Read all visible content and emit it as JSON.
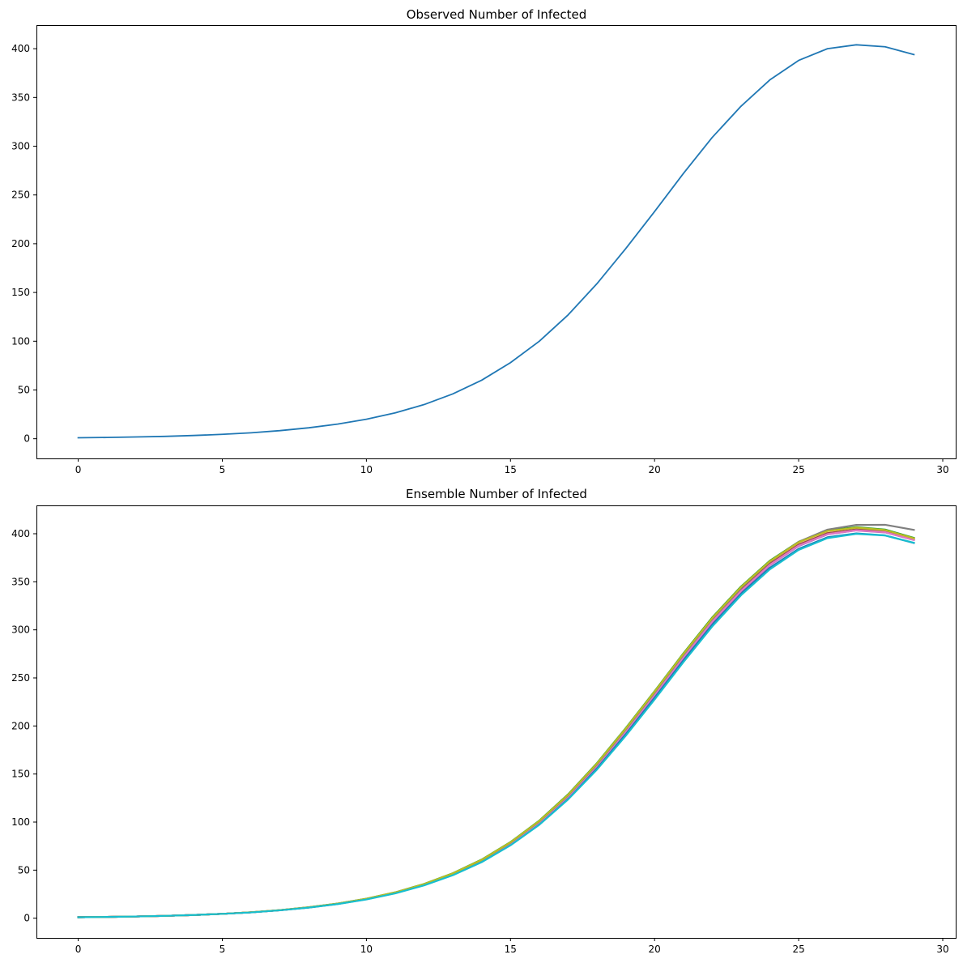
{
  "chart_data": [
    {
      "type": "line",
      "title": "Observed Number of Infected",
      "xlabel": "",
      "ylabel": "",
      "xlim": [
        -1.45,
        30.45
      ],
      "ylim": [
        -20.2,
        424.2
      ],
      "xticks": [
        0,
        5,
        10,
        15,
        20,
        25,
        30
      ],
      "yticks": [
        0,
        50,
        100,
        150,
        200,
        250,
        300,
        350,
        400
      ],
      "grid": false,
      "legend": "none",
      "x": [
        0,
        1,
        2,
        3,
        4,
        5,
        6,
        7,
        8,
        9,
        10,
        11,
        12,
        13,
        14,
        15,
        16,
        17,
        18,
        19,
        20,
        21,
        22,
        23,
        24,
        25,
        26,
        27,
        28,
        29
      ],
      "series": [
        {
          "color": "#1f77b4",
          "values": [
            1.0,
            1.3,
            1.8,
            2.4,
            3.3,
            4.5,
            6.1,
            8.3,
            11.2,
            15.0,
            20.0,
            26.5,
            35.0,
            46.0,
            60.0,
            78.0,
            100.0,
            127.0,
            159.0,
            195.0,
            233.0,
            272.0,
            309.0,
            341.0,
            368.0,
            388.0,
            400.0,
            404.0,
            402.0,
            394.0
          ]
        }
      ]
    },
    {
      "type": "line",
      "title": "Ensemble Number of Infected",
      "xlabel": "",
      "ylabel": "",
      "xlim": [
        -1.45,
        30.45
      ],
      "ylim": [
        -20.5,
        429.5
      ],
      "xticks": [
        0,
        5,
        10,
        15,
        20,
        25,
        30
      ],
      "yticks": [
        0,
        50,
        100,
        150,
        200,
        250,
        300,
        350,
        400
      ],
      "grid": false,
      "legend": "none",
      "x": [
        0,
        1,
        2,
        3,
        4,
        5,
        6,
        7,
        8,
        9,
        10,
        11,
        12,
        13,
        14,
        15,
        16,
        17,
        18,
        19,
        20,
        21,
        22,
        23,
        24,
        25,
        26,
        27,
        28,
        29
      ],
      "series": [
        {
          "color": "#1f77b4",
          "values": [
            1.0,
            1.3,
            1.8,
            2.4,
            3.3,
            4.5,
            6.1,
            8.2,
            11.1,
            14.8,
            19.7,
            26.1,
            34.4,
            45.2,
            59.0,
            76.6,
            98.3,
            124.9,
            156.1,
            191.5,
            229.6,
            268.6,
            305.7,
            338.0,
            364.6,
            384.3,
            396.3,
            400.3,
            398.3,
            390.4
          ]
        },
        {
          "color": "#ff7f0e",
          "values": [
            1.0,
            1.3,
            1.8,
            2.4,
            3.3,
            4.5,
            6.1,
            8.3,
            11.2,
            15.0,
            20.0,
            26.5,
            35.0,
            46.0,
            60.0,
            78.0,
            100.0,
            127.0,
            159.0,
            195.0,
            233.0,
            272.0,
            309.0,
            341.0,
            368.0,
            388.0,
            400.0,
            404.0,
            402.0,
            394.0
          ]
        },
        {
          "color": "#2ca02c",
          "values": [
            1.0,
            1.3,
            1.8,
            2.4,
            3.3,
            4.5,
            6.2,
            8.4,
            11.4,
            15.2,
            20.3,
            26.9,
            35.6,
            46.8,
            61.0,
            79.2,
            101.5,
            128.9,
            161.3,
            197.8,
            236.2,
            275.6,
            312.9,
            345.1,
            371.9,
            391.7,
            403.4,
            406.9,
            404.4,
            395.7
          ]
        },
        {
          "color": "#d62728",
          "values": [
            1.0,
            1.3,
            1.8,
            2.4,
            3.3,
            4.5,
            6.1,
            8.3,
            11.2,
            15.0,
            20.1,
            26.6,
            35.1,
            46.2,
            60.2,
            78.3,
            100.4,
            127.5,
            159.6,
            195.7,
            233.8,
            272.9,
            309.9,
            341.9,
            368.8,
            388.8,
            400.7,
            404.6,
            402.6,
            394.5
          ]
        },
        {
          "color": "#9467bd",
          "values": [
            1.0,
            1.3,
            1.8,
            2.4,
            3.3,
            4.5,
            6.1,
            8.3,
            11.2,
            14.9,
            19.9,
            26.4,
            34.9,
            45.8,
            59.7,
            77.7,
            99.6,
            126.5,
            158.4,
            194.3,
            232.2,
            271.1,
            308.1,
            340.1,
            367.2,
            387.2,
            399.3,
            403.4,
            401.4,
            393.5
          ]
        },
        {
          "color": "#8c564b",
          "values": [
            1.0,
            1.3,
            1.8,
            2.4,
            3.3,
            4.5,
            6.1,
            8.3,
            11.2,
            15.0,
            20.0,
            26.5,
            35.0,
            46.1,
            60.1,
            78.1,
            100.2,
            127.2,
            159.3,
            195.4,
            233.4,
            272.5,
            309.5,
            341.5,
            368.5,
            388.5,
            400.4,
            404.3,
            402.3,
            394.3
          ]
        },
        {
          "color": "#e377c2",
          "values": [
            1.0,
            1.3,
            1.8,
            2.4,
            3.3,
            4.5,
            6.1,
            8.3,
            11.2,
            14.9,
            19.9,
            26.4,
            34.9,
            45.9,
            59.8,
            77.8,
            99.8,
            126.7,
            158.7,
            194.6,
            232.6,
            271.5,
            308.5,
            340.5,
            367.6,
            387.6,
            399.6,
            403.6,
            401.6,
            393.6
          ]
        },
        {
          "color": "#7f7f7f",
          "values": [
            1.0,
            1.3,
            1.8,
            2.4,
            3.3,
            4.5,
            6.1,
            8.3,
            11.2,
            15.0,
            20.1,
            26.6,
            35.2,
            46.3,
            60.4,
            78.5,
            100.7,
            127.9,
            160.1,
            196.4,
            234.7,
            274.0,
            311.3,
            343.7,
            371.0,
            391.6,
            404.3,
            409.2,
            409.3,
            404.0
          ]
        },
        {
          "color": "#bcbd22",
          "values": [
            1.0,
            1.3,
            1.8,
            2.4,
            3.3,
            4.5,
            6.2,
            8.4,
            11.3,
            15.1,
            20.2,
            26.8,
            35.4,
            46.6,
            60.7,
            78.9,
            101.1,
            128.4,
            160.8,
            197.2,
            235.6,
            274.9,
            312.1,
            344.4,
            371.3,
            391.1,
            402.8,
            406.3,
            403.8,
            395.2
          ]
        },
        {
          "color": "#17becf",
          "values": [
            1.0,
            1.3,
            1.8,
            2.4,
            3.3,
            4.5,
            6.0,
            8.2,
            11.0,
            14.7,
            19.5,
            25.8,
            34.1,
            44.7,
            58.3,
            75.8,
            97.2,
            123.6,
            154.6,
            189.8,
            227.5,
            266.4,
            303.5,
            336.0,
            363.0,
            383.2,
            395.5,
            399.9,
            398.2,
            390.6
          ]
        }
      ]
    }
  ]
}
